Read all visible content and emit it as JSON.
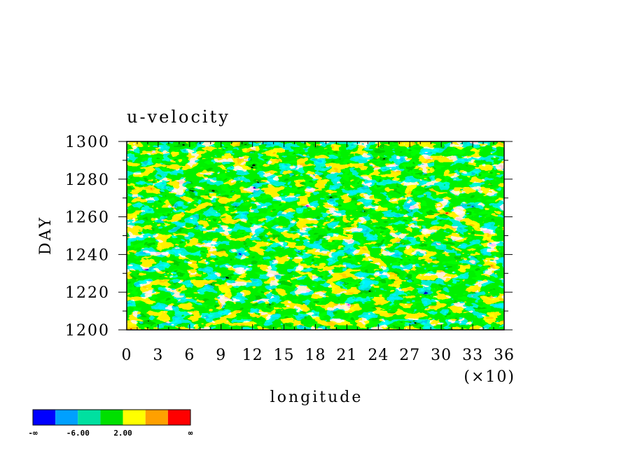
{
  "chart_data": {
    "type": "heatmap",
    "title": "u-velocity",
    "xlabel": "longitude",
    "ylabel": "DAY",
    "x_multiplier_label": "(×10)",
    "xlim": [
      0,
      36
    ],
    "ylim": [
      1200,
      1300
    ],
    "x_ticks": [
      "0",
      "3",
      "6",
      "9",
      "12",
      "15",
      "18",
      "21",
      "24",
      "27",
      "30",
      "33",
      "36"
    ],
    "y_ticks": [
      "1200",
      "1220",
      "1240",
      "1260",
      "1280",
      "1300"
    ],
    "colorbar": {
      "colors": [
        "#0000ff",
        "#00a0ff",
        "#00e0a0",
        "#00e000",
        "#ffff00",
        "#ffa000",
        "#ff0000"
      ],
      "labels": [
        "-∞",
        "-6.00",
        "2.00",
        "∞"
      ]
    }
  }
}
